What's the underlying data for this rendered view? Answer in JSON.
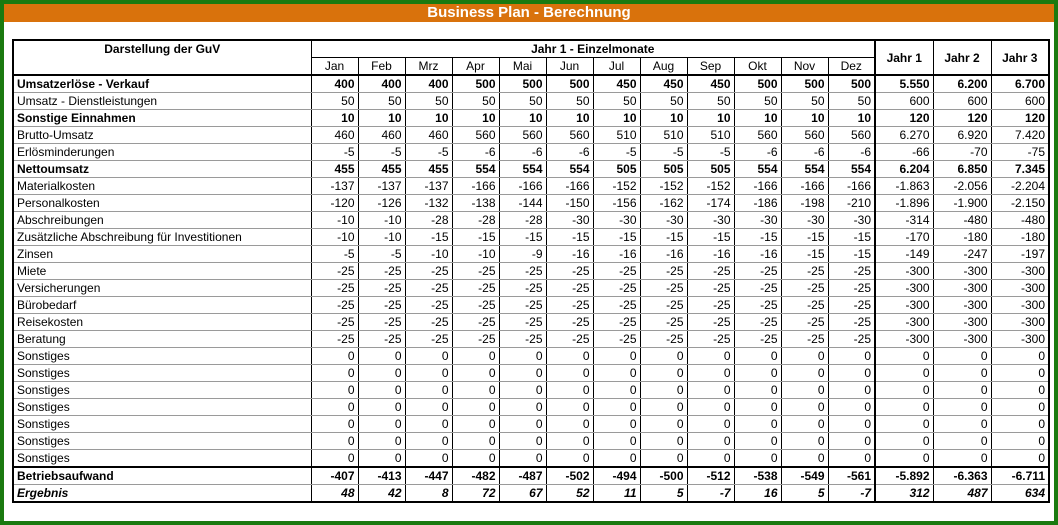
{
  "title": "Business Plan - Berechnung",
  "header": {
    "label_col": "Darstellung der GuV",
    "group": "Jahr 1 - Einzelmonate",
    "months": [
      "Jan",
      "Feb",
      "Mrz",
      "Apr",
      "Mai",
      "Jun",
      "Jul",
      "Aug",
      "Sep",
      "Okt",
      "Nov",
      "Dez"
    ],
    "years": [
      "Jahr 1",
      "Jahr 2",
      "Jahr 3"
    ]
  },
  "rows": [
    {
      "label": "Umsatzerlöse - Verkauf",
      "style": "bold",
      "values": [
        "400",
        "400",
        "400",
        "500",
        "500",
        "500",
        "450",
        "450",
        "450",
        "500",
        "500",
        "500"
      ],
      "years": [
        "5.550",
        "6.200",
        "6.700"
      ]
    },
    {
      "label": "Umsatz - Dienstleistungen",
      "style": "",
      "values": [
        "50",
        "50",
        "50",
        "50",
        "50",
        "50",
        "50",
        "50",
        "50",
        "50",
        "50",
        "50"
      ],
      "years": [
        "600",
        "600",
        "600"
      ]
    },
    {
      "label": "Sonstige Einnahmen",
      "style": "bold",
      "values": [
        "10",
        "10",
        "10",
        "10",
        "10",
        "10",
        "10",
        "10",
        "10",
        "10",
        "10",
        "10"
      ],
      "years": [
        "120",
        "120",
        "120"
      ]
    },
    {
      "label": "Brutto-Umsatz",
      "style": "",
      "values": [
        "460",
        "460",
        "460",
        "560",
        "560",
        "560",
        "510",
        "510",
        "510",
        "560",
        "560",
        "560"
      ],
      "years": [
        "6.270",
        "6.920",
        "7.420"
      ]
    },
    {
      "label": "Erlösminderungen",
      "style": "",
      "values": [
        "-5",
        "-5",
        "-5",
        "-6",
        "-6",
        "-6",
        "-5",
        "-5",
        "-5",
        "-6",
        "-6",
        "-6"
      ],
      "years": [
        "-66",
        "-70",
        "-75"
      ]
    },
    {
      "label": "Nettoumsatz",
      "style": "bold",
      "values": [
        "455",
        "455",
        "455",
        "554",
        "554",
        "554",
        "505",
        "505",
        "505",
        "554",
        "554",
        "554"
      ],
      "years": [
        "6.204",
        "6.850",
        "7.345"
      ]
    },
    {
      "label": "Materialkosten",
      "style": "",
      "values": [
        "-137",
        "-137",
        "-137",
        "-166",
        "-166",
        "-166",
        "-152",
        "-152",
        "-152",
        "-166",
        "-166",
        "-166"
      ],
      "years": [
        "-1.863",
        "-2.056",
        "-2.204"
      ]
    },
    {
      "label": "Personalkosten",
      "style": "",
      "values": [
        "-120",
        "-126",
        "-132",
        "-138",
        "-144",
        "-150",
        "-156",
        "-162",
        "-174",
        "-186",
        "-198",
        "-210"
      ],
      "years": [
        "-1.896",
        "-1.900",
        "-2.150"
      ]
    },
    {
      "label": "Abschreibungen",
      "style": "",
      "values": [
        "-10",
        "-10",
        "-28",
        "-28",
        "-28",
        "-30",
        "-30",
        "-30",
        "-30",
        "-30",
        "-30",
        "-30"
      ],
      "years": [
        "-314",
        "-480",
        "-480"
      ]
    },
    {
      "label": "Zusätzliche Abschreibung für Investitionen",
      "style": "",
      "values": [
        "-10",
        "-10",
        "-15",
        "-15",
        "-15",
        "-15",
        "-15",
        "-15",
        "-15",
        "-15",
        "-15",
        "-15"
      ],
      "years": [
        "-170",
        "-180",
        "-180"
      ]
    },
    {
      "label": "Zinsen",
      "style": "",
      "values": [
        "-5",
        "-5",
        "-10",
        "-10",
        "-9",
        "-16",
        "-16",
        "-16",
        "-16",
        "-16",
        "-15",
        "-15"
      ],
      "years": [
        "-149",
        "-247",
        "-197"
      ]
    },
    {
      "label": "Miete",
      "style": "",
      "values": [
        "-25",
        "-25",
        "-25",
        "-25",
        "-25",
        "-25",
        "-25",
        "-25",
        "-25",
        "-25",
        "-25",
        "-25"
      ],
      "years": [
        "-300",
        "-300",
        "-300"
      ]
    },
    {
      "label": "Versicherungen",
      "style": "",
      "values": [
        "-25",
        "-25",
        "-25",
        "-25",
        "-25",
        "-25",
        "-25",
        "-25",
        "-25",
        "-25",
        "-25",
        "-25"
      ],
      "years": [
        "-300",
        "-300",
        "-300"
      ]
    },
    {
      "label": "Bürobedarf",
      "style": "",
      "values": [
        "-25",
        "-25",
        "-25",
        "-25",
        "-25",
        "-25",
        "-25",
        "-25",
        "-25",
        "-25",
        "-25",
        "-25"
      ],
      "years": [
        "-300",
        "-300",
        "-300"
      ]
    },
    {
      "label": "Reisekosten",
      "style": "",
      "values": [
        "-25",
        "-25",
        "-25",
        "-25",
        "-25",
        "-25",
        "-25",
        "-25",
        "-25",
        "-25",
        "-25",
        "-25"
      ],
      "years": [
        "-300",
        "-300",
        "-300"
      ]
    },
    {
      "label": "Beratung",
      "style": "",
      "values": [
        "-25",
        "-25",
        "-25",
        "-25",
        "-25",
        "-25",
        "-25",
        "-25",
        "-25",
        "-25",
        "-25",
        "-25"
      ],
      "years": [
        "-300",
        "-300",
        "-300"
      ]
    },
    {
      "label": "Sonstiges",
      "style": "",
      "values": [
        "0",
        "0",
        "0",
        "0",
        "0",
        "0",
        "0",
        "0",
        "0",
        "0",
        "0",
        "0"
      ],
      "years": [
        "0",
        "0",
        "0"
      ]
    },
    {
      "label": "Sonstiges",
      "style": "",
      "values": [
        "0",
        "0",
        "0",
        "0",
        "0",
        "0",
        "0",
        "0",
        "0",
        "0",
        "0",
        "0"
      ],
      "years": [
        "0",
        "0",
        "0"
      ]
    },
    {
      "label": "Sonstiges",
      "style": "",
      "values": [
        "0",
        "0",
        "0",
        "0",
        "0",
        "0",
        "0",
        "0",
        "0",
        "0",
        "0",
        "0"
      ],
      "years": [
        "0",
        "0",
        "0"
      ]
    },
    {
      "label": "Sonstiges",
      "style": "",
      "values": [
        "0",
        "0",
        "0",
        "0",
        "0",
        "0",
        "0",
        "0",
        "0",
        "0",
        "0",
        "0"
      ],
      "years": [
        "0",
        "0",
        "0"
      ]
    },
    {
      "label": "Sonstiges",
      "style": "",
      "values": [
        "0",
        "0",
        "0",
        "0",
        "0",
        "0",
        "0",
        "0",
        "0",
        "0",
        "0",
        "0"
      ],
      "years": [
        "0",
        "0",
        "0"
      ]
    },
    {
      "label": "Sonstiges",
      "style": "",
      "values": [
        "0",
        "0",
        "0",
        "0",
        "0",
        "0",
        "0",
        "0",
        "0",
        "0",
        "0",
        "0"
      ],
      "years": [
        "0",
        "0",
        "0"
      ]
    },
    {
      "label": "Sonstiges",
      "style": "",
      "values": [
        "0",
        "0",
        "0",
        "0",
        "0",
        "0",
        "0",
        "0",
        "0",
        "0",
        "0",
        "0"
      ],
      "years": [
        "0",
        "0",
        "0"
      ]
    },
    {
      "label": "Betriebsaufwand",
      "style": "bold",
      "values": [
        "-407",
        "-413",
        "-447",
        "-482",
        "-487",
        "-502",
        "-494",
        "-500",
        "-512",
        "-538",
        "-549",
        "-561"
      ],
      "years": [
        "-5.892",
        "-6.363",
        "-6.711"
      ]
    },
    {
      "label": "Ergebnis",
      "style": "italic",
      "values": [
        "48",
        "42",
        "8",
        "72",
        "67",
        "52",
        "11",
        "5",
        "-7",
        "16",
        "5",
        "-7"
      ],
      "years": [
        "312",
        "487",
        "634"
      ]
    }
  ]
}
